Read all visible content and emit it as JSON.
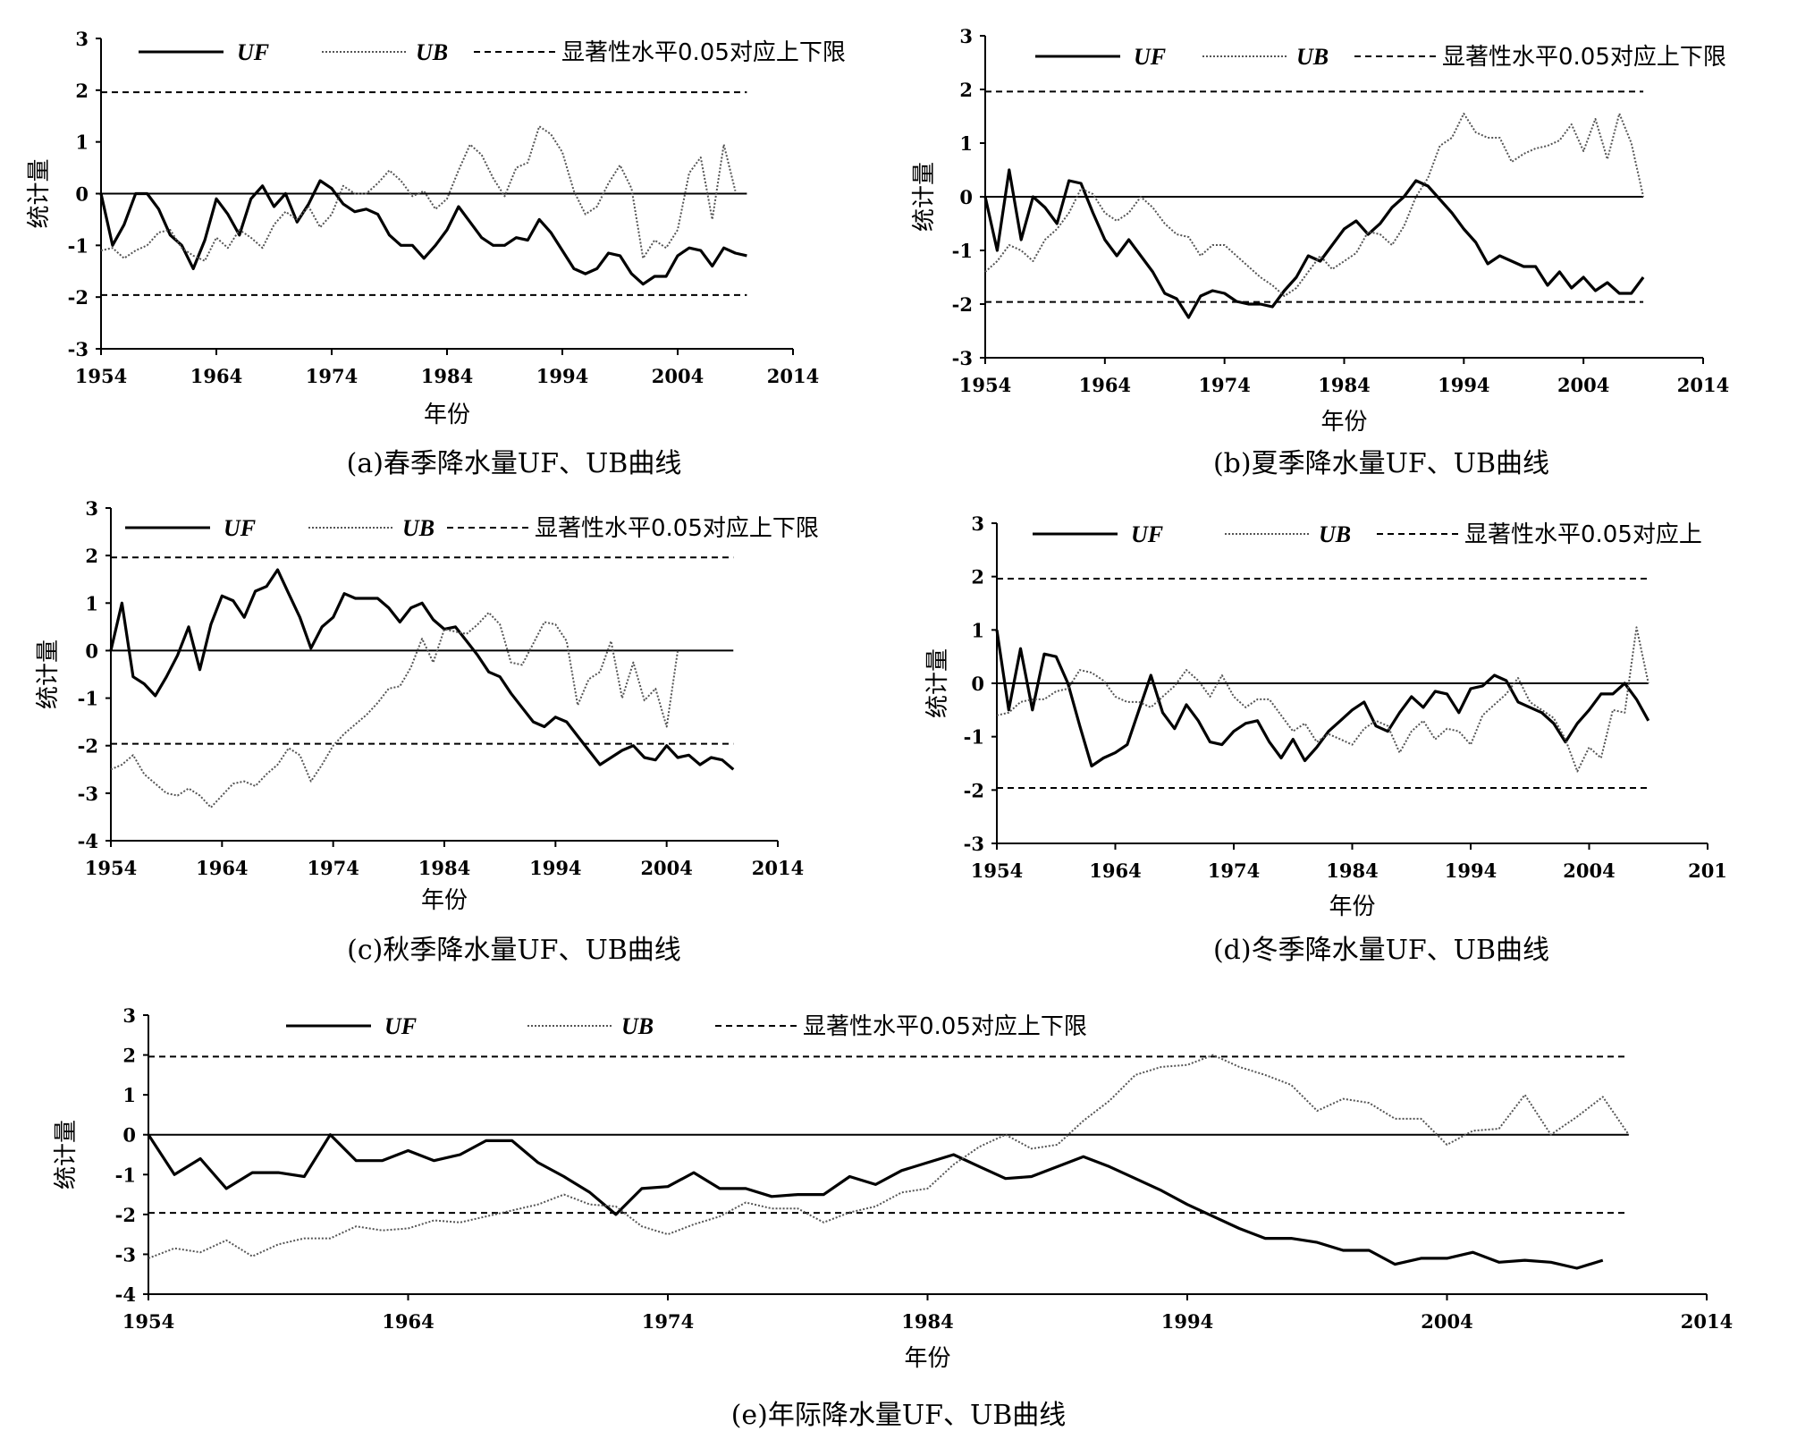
{
  "figure": {
    "panels": [
      {
        "caption": "(a)春季降水量UF、UB曲线",
        "legend": {
          "uf": "UF",
          "ub": "UB",
          "sig": "显著性水平0.05对应上下限"
        },
        "ylabel": "统计量",
        "xlabel": "年份"
      },
      {
        "caption": "(b)夏季降水量UF、UB曲线",
        "legend": {
          "uf": "UF",
          "ub": "UB",
          "sig": "显著性水平0.05对应上下限"
        },
        "ylabel": "统计量",
        "xlabel": "年份"
      },
      {
        "caption": "(c)秋季降水量UF、UB曲线",
        "legend": {
          "uf": "UF",
          "ub": "UB",
          "sig": "显著性水平0.05对应上下限"
        },
        "ylabel": "统计量",
        "xlabel": "年份"
      },
      {
        "caption": "(d)冬季降水量UF、UB曲线",
        "legend": {
          "uf": "UF",
          "ub": "UB",
          "sig": "显著性水平0.05对应上"
        },
        "ylabel": "统计量",
        "xlabel": "年份"
      },
      {
        "caption": "(e)年际降水量UF、UB曲线",
        "legend": {
          "uf": "UF",
          "ub": "UB",
          "sig": "显著性水平0.05对应上下限"
        },
        "ylabel": "统计量",
        "xlabel": "年份"
      }
    ]
  },
  "chart_data": [
    {
      "type": "line",
      "ylabel": "统计量",
      "xlabel": "年份",
      "xlim": [
        1954,
        2014
      ],
      "ylim": [
        -3,
        3
      ],
      "xticks": [
        "1954",
        "1964",
        "1974",
        "1984",
        "1994",
        "2004",
        "2014"
      ],
      "yticks": [
        "-3",
        "-2",
        "-1",
        "0",
        "1",
        "2",
        "3"
      ],
      "x_start": 1954,
      "significance": [
        1.96,
        -1.96
      ],
      "series": [
        {
          "name": "UF",
          "values": [
            0,
            -1,
            -0.6,
            0,
            0,
            -0.3,
            -0.8,
            -1,
            -1.45,
            -0.9,
            -0.1,
            -0.4,
            -0.8,
            -0.1,
            0.15,
            -0.25,
            0,
            -0.55,
            -0.2,
            0.25,
            0.1,
            -0.2,
            -0.35,
            -0.3,
            -0.4,
            -0.8,
            -1,
            -1,
            -1.25,
            -1,
            -0.7,
            -0.25,
            -0.55,
            -0.85,
            -1,
            -1,
            -0.85,
            -0.9,
            -0.5,
            -0.75,
            -1.1,
            -1.45,
            -1.55,
            -1.45,
            -1.15,
            -1.2,
            -1.55,
            -1.75,
            -1.6,
            -1.6,
            -1.2,
            -1.05,
            -1.1,
            -1.4,
            -1.05,
            -1.15,
            -1.2
          ]
        },
        {
          "name": "UB",
          "values": [
            -1.1,
            -1.05,
            -1.25,
            -1.1,
            -1,
            -0.75,
            -0.7,
            -1.05,
            -1.2,
            -1.3,
            -0.85,
            -1.05,
            -0.7,
            -0.85,
            -1.05,
            -0.6,
            -0.35,
            -0.5,
            -0.25,
            -0.65,
            -0.4,
            0.15,
            0,
            0,
            0.2,
            0.45,
            0.25,
            -0.05,
            0.05,
            -0.3,
            -0.1,
            0.45,
            0.95,
            0.75,
            0.3,
            -0.05,
            0.5,
            0.6,
            1.3,
            1.15,
            0.8,
            0.05,
            -0.4,
            -0.25,
            0.2,
            0.55,
            0.1,
            -1.25,
            -0.9,
            -1.05,
            -0.7,
            0.4,
            0.7,
            -0.5,
            0.95,
            0.05
          ]
        }
      ]
    },
    {
      "type": "line",
      "ylabel": "统计量",
      "xlabel": "年份",
      "xlim": [
        1954,
        2014
      ],
      "ylim": [
        -3,
        3
      ],
      "xticks": [
        "1954",
        "1964",
        "1974",
        "1984",
        "1994",
        "2004",
        "2014"
      ],
      "yticks": [
        "-3",
        "-2",
        "-1",
        "0",
        "1",
        "2",
        "3"
      ],
      "x_start": 1954,
      "significance": [
        1.96,
        -1.96
      ],
      "series": [
        {
          "name": "UF",
          "values": [
            0,
            -1,
            0.5,
            -0.8,
            0,
            -0.2,
            -0.5,
            0.3,
            0.25,
            -0.3,
            -0.8,
            -1.1,
            -0.8,
            -1.1,
            -1.4,
            -1.8,
            -1.9,
            -2.25,
            -1.85,
            -1.75,
            -1.8,
            -1.95,
            -2,
            -2,
            -2.05,
            -1.75,
            -1.5,
            -1.1,
            -1.2,
            -0.9,
            -0.6,
            -0.45,
            -0.7,
            -0.5,
            -0.2,
            0,
            0.3,
            0.2,
            -0.05,
            -0.3,
            -0.6,
            -0.85,
            -1.25,
            -1.1,
            -1.2,
            -1.3,
            -1.3,
            -1.65,
            -1.4,
            -1.7,
            -1.5,
            -1.75,
            -1.6,
            -1.8,
            -1.8,
            -1.5
          ]
        },
        {
          "name": "UB",
          "values": [
            -1.4,
            -1.2,
            -0.9,
            -1,
            -1.2,
            -0.8,
            -0.6,
            -0.3,
            0.15,
            0.05,
            -0.3,
            -0.45,
            -0.3,
            0,
            -0.2,
            -0.5,
            -0.7,
            -0.75,
            -1.1,
            -0.9,
            -0.9,
            -1.1,
            -1.3,
            -1.5,
            -1.65,
            -1.85,
            -1.7,
            -1.4,
            -1.1,
            -1.35,
            -1.2,
            -1.05,
            -0.65,
            -0.7,
            -0.9,
            -0.55,
            0,
            0.35,
            0.95,
            1.1,
            1.55,
            1.2,
            1.1,
            1.1,
            0.65,
            0.8,
            0.9,
            0.95,
            1.05,
            1.35,
            0.85,
            1.45,
            0.7,
            1.55,
            1,
            0
          ]
        }
      ]
    },
    {
      "type": "line",
      "ylabel": "统计量",
      "xlabel": "年份",
      "xlim": [
        1954,
        2014
      ],
      "ylim": [
        -4,
        3
      ],
      "xticks": [
        "1954",
        "1964",
        "1974",
        "1984",
        "1994",
        "2004",
        "2014"
      ],
      "yticks": [
        "-4",
        "-3",
        "-2",
        "-1",
        "0",
        "1",
        "2",
        "3"
      ],
      "x_start": 1954,
      "significance": [
        1.96,
        -1.96
      ],
      "series": [
        {
          "name": "UF",
          "values": [
            0,
            1,
            -0.55,
            -0.7,
            -0.95,
            -0.55,
            -0.1,
            0.5,
            -0.4,
            0.55,
            1.15,
            1.05,
            0.7,
            1.25,
            1.35,
            1.7,
            1.2,
            0.7,
            0.05,
            0.5,
            0.7,
            1.2,
            1.1,
            1.1,
            1.1,
            0.9,
            0.6,
            0.9,
            1,
            0.65,
            0.45,
            0.5,
            0.2,
            -0.1,
            -0.45,
            -0.55,
            -0.9,
            -1.2,
            -1.5,
            -1.6,
            -1.4,
            -1.5,
            -1.8,
            -2.1,
            -2.4,
            -2.25,
            -2.1,
            -2,
            -2.25,
            -2.3,
            -2,
            -2.25,
            -2.2,
            -2.4,
            -2.25,
            -2.3,
            -2.5
          ]
        },
        {
          "name": "UB",
          "values": [
            -2.5,
            -2.4,
            -2.2,
            -2.6,
            -2.8,
            -3,
            -3.05,
            -2.9,
            -3.05,
            -3.3,
            -3.05,
            -2.8,
            -2.75,
            -2.85,
            -2.6,
            -2.4,
            -2.05,
            -2.2,
            -2.75,
            -2.4,
            -2,
            -1.75,
            -1.55,
            -1.35,
            -1.1,
            -0.8,
            -0.75,
            -0.35,
            0.25,
            -0.25,
            0.45,
            0.4,
            0.35,
            0.55,
            0.8,
            0.55,
            -0.25,
            -0.3,
            0.15,
            0.6,
            0.55,
            0.2,
            -1.15,
            -0.6,
            -0.45,
            0.2,
            -1,
            -0.25,
            -1.05,
            -0.8,
            -1.6,
            0
          ]
        }
      ]
    },
    {
      "type": "line",
      "ylabel": "统计量",
      "xlabel": "年份",
      "xlim": [
        1954,
        2014
      ],
      "ylim": [
        -3,
        3
      ],
      "xticks": [
        "1954",
        "1964",
        "1974",
        "1984",
        "1994",
        "2004",
        "201"
      ],
      "yticks": [
        "-3",
        "-2",
        "-1",
        "0",
        "1",
        "2",
        "3"
      ],
      "x_start": 1954,
      "significance": [
        1.96,
        -1.96
      ],
      "series": [
        {
          "name": "UF",
          "values": [
            1,
            -0.5,
            0.65,
            -0.5,
            0.55,
            0.5,
            0,
            -0.8,
            -1.55,
            -1.4,
            -1.3,
            -1.15,
            -0.5,
            0.15,
            -0.55,
            -0.85,
            -0.4,
            -0.7,
            -1.1,
            -1.15,
            -0.9,
            -0.75,
            -0.7,
            -1.1,
            -1.4,
            -1.05,
            -1.45,
            -1.2,
            -0.9,
            -0.7,
            -0.5,
            -0.35,
            -0.8,
            -0.9,
            -0.55,
            -0.25,
            -0.45,
            -0.15,
            -0.2,
            -0.55,
            -0.1,
            -0.05,
            0.15,
            0.05,
            -0.35,
            -0.45,
            -0.55,
            -0.75,
            -1.1,
            -0.75,
            -0.5,
            -0.2,
            -0.2,
            0,
            -0.3,
            -0.7
          ]
        },
        {
          "name": "UB",
          "values": [
            -0.6,
            -0.55,
            -0.35,
            -0.3,
            -0.3,
            -0.15,
            -0.1,
            0.25,
            0.2,
            0.05,
            -0.25,
            -0.35,
            -0.35,
            -0.45,
            -0.25,
            -0.05,
            0.25,
            0.05,
            -0.25,
            0.15,
            -0.25,
            -0.45,
            -0.3,
            -0.3,
            -0.6,
            -0.9,
            -0.75,
            -1.1,
            -0.95,
            -1.05,
            -1.15,
            -0.85,
            -0.7,
            -0.8,
            -1.3,
            -0.9,
            -0.7,
            -1.05,
            -0.85,
            -0.9,
            -1.15,
            -0.6,
            -0.4,
            -0.2,
            0.1,
            -0.35,
            -0.5,
            -0.65,
            -1.05,
            -1.65,
            -1.2,
            -1.4,
            -0.5,
            -0.55,
            1.05,
            0
          ]
        }
      ]
    },
    {
      "type": "line",
      "ylabel": "统计量",
      "xlabel": "年份",
      "xlim": [
        1954,
        2014
      ],
      "ylim": [
        -4,
        3
      ],
      "xticks": [
        "1954",
        "1964",
        "1974",
        "1984",
        "1994",
        "2004",
        "2014"
      ],
      "yticks": [
        "-4",
        "-3",
        "-2",
        "-1",
        "0",
        "1",
        "2",
        "3"
      ],
      "x_start": 1954,
      "significance": [
        1.96,
        -1.96
      ],
      "series": [
        {
          "name": "UF",
          "values": [
            0,
            -1,
            -0.6,
            -1.35,
            -0.95,
            -0.95,
            -1.05,
            0,
            -0.65,
            -0.65,
            -0.4,
            -0.65,
            -0.5,
            -0.15,
            -0.15,
            -0.7,
            -1.05,
            -1.45,
            -2,
            -1.35,
            -1.3,
            -0.95,
            -1.35,
            -1.35,
            -1.55,
            -1.5,
            -1.5,
            -1.05,
            -1.25,
            -0.9,
            -0.7,
            -0.5,
            -0.8,
            -1.1,
            -1.05,
            -0.8,
            -0.55,
            -0.8,
            -1.1,
            -1.4,
            -1.75,
            -2.05,
            -2.35,
            -2.6,
            -2.6,
            -2.7,
            -2.9,
            -2.9,
            -3.25,
            -3.1,
            -3.1,
            -2.95,
            -3.2,
            -3.15,
            -3.2,
            -3.35,
            -3.15
          ]
        },
        {
          "name": "UB",
          "values": [
            -3.1,
            -2.85,
            -2.95,
            -2.65,
            -3.05,
            -2.75,
            -2.6,
            -2.6,
            -2.3,
            -2.4,
            -2.35,
            -2.15,
            -2.2,
            -2.05,
            -1.9,
            -1.75,
            -1.5,
            -1.75,
            -1.8,
            -2.3,
            -2.5,
            -2.25,
            -2.05,
            -1.7,
            -1.85,
            -1.85,
            -2.2,
            -1.95,
            -1.8,
            -1.45,
            -1.35,
            -0.75,
            -0.3,
            0,
            -0.35,
            -0.25,
            0.35,
            0.85,
            1.5,
            1.7,
            1.75,
            2,
            1.7,
            1.5,
            1.25,
            0.6,
            0.9,
            0.8,
            0.4,
            0.4,
            -0.25,
            0.1,
            0.15,
            1,
            0,
            0.45,
            0.95,
            0
          ]
        }
      ]
    }
  ]
}
